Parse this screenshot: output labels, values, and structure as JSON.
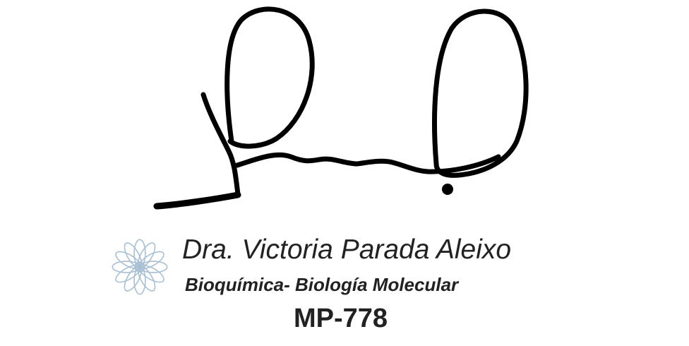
{
  "signature": {
    "name_line": "Dra. Victoria Parada Aleixo",
    "specialty_line": "Bioquímica- Biología Molecular",
    "license_line": "MP-778"
  },
  "colors": {
    "ink": "#000000",
    "text": "#222222",
    "emblem": "#a9bfd3"
  },
  "icons": {
    "emblem": "mandala-flower-icon",
    "signature": "handwritten-signature"
  }
}
